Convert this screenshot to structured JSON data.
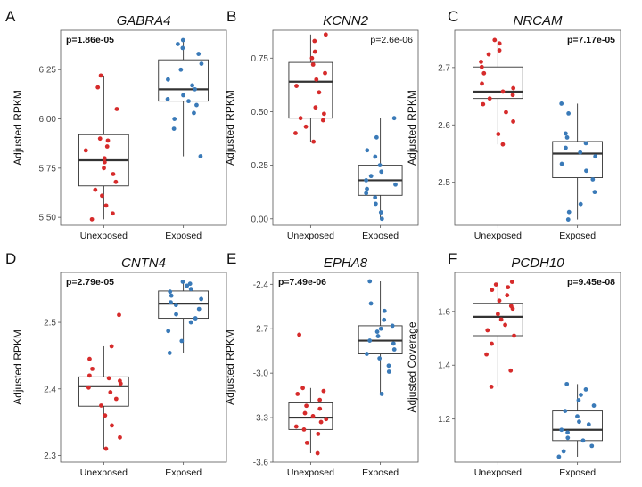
{
  "chart_data": [
    {
      "type": "box",
      "panel_letter": "A",
      "title": "GABRA4",
      "ylabel": "Adjusted RPKM",
      "categories": [
        "Unexposed",
        "Exposed"
      ],
      "ylim": [
        5.46,
        6.45
      ],
      "yticks": [
        5.5,
        5.75,
        6.0,
        6.25
      ],
      "tick_labels": [
        "5.50",
        "5.75",
        "6.00",
        "6.25"
      ],
      "pvalue": "p=1.86e-05",
      "pvalue_pos": "top-left",
      "pvalue_bold": true,
      "boxes": [
        {
          "q1": 5.66,
          "median": 5.79,
          "q3": 5.92,
          "whisker_low": 5.49,
          "whisker_high": 6.22
        },
        {
          "q1": 6.09,
          "median": 6.15,
          "q3": 6.3,
          "whisker_low": 5.81,
          "whisker_high": 6.4
        }
      ],
      "points": [
        [
          5.49,
          5.52,
          5.56,
          5.61,
          5.64,
          5.68,
          5.72,
          5.75,
          5.78,
          5.8,
          5.84,
          5.86,
          5.89,
          5.9,
          6.05,
          6.16,
          6.22
        ],
        [
          5.81,
          5.95,
          6.0,
          6.03,
          6.07,
          6.09,
          6.1,
          6.12,
          6.15,
          6.17,
          6.2,
          6.25,
          6.28,
          6.33,
          6.36,
          6.38,
          6.4
        ]
      ]
    },
    {
      "type": "box",
      "panel_letter": "B",
      "title": "KCNN2",
      "ylabel": "Adjusted RPKM",
      "categories": [
        "Unexposed",
        "Exposed"
      ],
      "ylim": [
        -0.03,
        0.88
      ],
      "yticks": [
        0.0,
        0.25,
        0.5,
        0.75
      ],
      "tick_labels": [
        "0.00",
        "0.25",
        "0.50",
        "0.75"
      ],
      "pvalue": "p=2.6e-06",
      "pvalue_pos": "top-right",
      "pvalue_bold": false,
      "boxes": [
        {
          "q1": 0.47,
          "median": 0.64,
          "q3": 0.73,
          "whisker_low": 0.36,
          "whisker_high": 0.86
        },
        {
          "q1": 0.11,
          "median": 0.18,
          "q3": 0.25,
          "whisker_low": 0.0,
          "whisker_high": 0.47
        }
      ],
      "points": [
        [
          0.36,
          0.4,
          0.43,
          0.46,
          0.47,
          0.49,
          0.52,
          0.59,
          0.62,
          0.65,
          0.68,
          0.72,
          0.75,
          0.78,
          0.83,
          0.86
        ],
        [
          0.0,
          0.03,
          0.07,
          0.1,
          0.12,
          0.14,
          0.16,
          0.18,
          0.2,
          0.22,
          0.25,
          0.29,
          0.32,
          0.38,
          0.47
        ]
      ]
    },
    {
      "type": "box",
      "panel_letter": "C",
      "title": "NRCAM",
      "ylabel": "Adjusted RPKM",
      "categories": [
        "Unexposed",
        "Exposed"
      ],
      "ylim": [
        2.425,
        2.765
      ],
      "yticks": [
        2.5,
        2.6,
        2.7
      ],
      "tick_labels": [
        "2.5",
        "2.6",
        "2.7"
      ],
      "pvalue": "p=7.17e-05",
      "pvalue_pos": "top-right",
      "pvalue_bold": true,
      "boxes": [
        {
          "q1": 2.646,
          "median": 2.658,
          "q3": 2.701,
          "whisker_low": 2.566,
          "whisker_high": 2.748
        },
        {
          "q1": 2.508,
          "median": 2.55,
          "q3": 2.571,
          "whisker_low": 2.435,
          "whisker_high": 2.637
        }
      ],
      "points": [
        [
          2.566,
          2.584,
          2.606,
          2.622,
          2.636,
          2.646,
          2.652,
          2.658,
          2.664,
          2.672,
          2.69,
          2.701,
          2.71,
          2.723,
          2.73,
          2.742,
          2.748
        ],
        [
          2.435,
          2.448,
          2.462,
          2.483,
          2.505,
          2.52,
          2.532,
          2.545,
          2.552,
          2.56,
          2.568,
          2.578,
          2.585,
          2.62,
          2.637
        ]
      ]
    },
    {
      "type": "box",
      "panel_letter": "D",
      "title": "CNTN4",
      "ylabel": "Adjusted RPKM",
      "categories": [
        "Unexposed",
        "Exposed"
      ],
      "ylim": [
        2.29,
        2.575
      ],
      "yticks": [
        2.3,
        2.4,
        2.5
      ],
      "tick_labels": [
        "2.3",
        "2.4",
        "2.5"
      ],
      "pvalue": "p=2.79e-05",
      "pvalue_pos": "top-left",
      "pvalue_bold": true,
      "boxes": [
        {
          "q1": 2.374,
          "median": 2.404,
          "q3": 2.418,
          "whisker_low": 2.31,
          "whisker_high": 2.464
        },
        {
          "q1": 2.506,
          "median": 2.528,
          "q3": 2.547,
          "whisker_low": 2.454,
          "whisker_high": 2.561
        }
      ],
      "points": [
        [
          2.31,
          2.327,
          2.345,
          2.36,
          2.375,
          2.385,
          2.395,
          2.402,
          2.408,
          2.412,
          2.416,
          2.42,
          2.43,
          2.445,
          2.464,
          2.511
        ],
        [
          2.454,
          2.472,
          2.487,
          2.5,
          2.506,
          2.512,
          2.52,
          2.526,
          2.53,
          2.535,
          2.54,
          2.546,
          2.55,
          2.555,
          2.558,
          2.561
        ]
      ]
    },
    {
      "type": "box",
      "panel_letter": "E",
      "title": "EPHA8",
      "ylabel": "Adjusted RPKM",
      "categories": [
        "Unexposed",
        "Exposed"
      ],
      "ylim": [
        -3.6,
        -2.32
      ],
      "yticks": [
        -3.6,
        -3.3,
        -3.0,
        -2.7,
        -2.4
      ],
      "tick_labels": [
        "-3.6",
        "-3.3",
        "-3.0",
        "-2.7",
        "-2.4"
      ],
      "pvalue": "p=7.49e-06",
      "pvalue_pos": "top-left",
      "pvalue_bold": true,
      "boxes": [
        {
          "q1": -3.38,
          "median": -3.3,
          "q3": -3.2,
          "whisker_low": -3.54,
          "whisker_high": -3.1
        },
        {
          "q1": -2.87,
          "median": -2.78,
          "q3": -2.68,
          "whisker_low": -3.14,
          "whisker_high": -2.38
        }
      ],
      "points": [
        [
          -3.54,
          -3.47,
          -3.41,
          -3.38,
          -3.36,
          -3.33,
          -3.31,
          -3.29,
          -3.27,
          -3.24,
          -3.22,
          -3.18,
          -3.14,
          -3.12,
          -3.1,
          -2.74
        ],
        [
          -3.14,
          -2.99,
          -2.95,
          -2.9,
          -2.87,
          -2.84,
          -2.8,
          -2.78,
          -2.75,
          -2.72,
          -2.7,
          -2.68,
          -2.64,
          -2.58,
          -2.53,
          -2.38
        ]
      ]
    },
    {
      "type": "box",
      "panel_letter": "F",
      "title": "PCDH10",
      "ylabel": "Adjusted Coverage",
      "categories": [
        "Unexposed",
        "Exposed"
      ],
      "ylim": [
        1.04,
        1.745
      ],
      "yticks": [
        1.2,
        1.4,
        1.6
      ],
      "tick_labels": [
        "1.2",
        "1.4",
        "1.6"
      ],
      "pvalue": "p=9.45e-08",
      "pvalue_pos": "top-right",
      "pvalue_bold": true,
      "boxes": [
        {
          "q1": 1.51,
          "median": 1.58,
          "q3": 1.63,
          "whisker_low": 1.32,
          "whisker_high": 1.71
        },
        {
          "q1": 1.12,
          "median": 1.16,
          "q3": 1.23,
          "whisker_low": 1.06,
          "whisker_high": 1.33
        }
      ],
      "points": [
        [
          1.32,
          1.38,
          1.44,
          1.48,
          1.51,
          1.53,
          1.55,
          1.57,
          1.59,
          1.61,
          1.62,
          1.64,
          1.66,
          1.68,
          1.69,
          1.7,
          1.71
        ],
        [
          1.06,
          1.08,
          1.1,
          1.12,
          1.13,
          1.15,
          1.16,
          1.18,
          1.19,
          1.21,
          1.23,
          1.25,
          1.27,
          1.29,
          1.31,
          1.33
        ]
      ]
    }
  ],
  "colors": {
    "unexposed_points": "#d62b2b",
    "exposed_points": "#3a7ab8",
    "box_stroke": "#333333",
    "median": "#333333",
    "panel_border": "#555555",
    "tick_text": "#444444",
    "title_text": "#111111"
  }
}
